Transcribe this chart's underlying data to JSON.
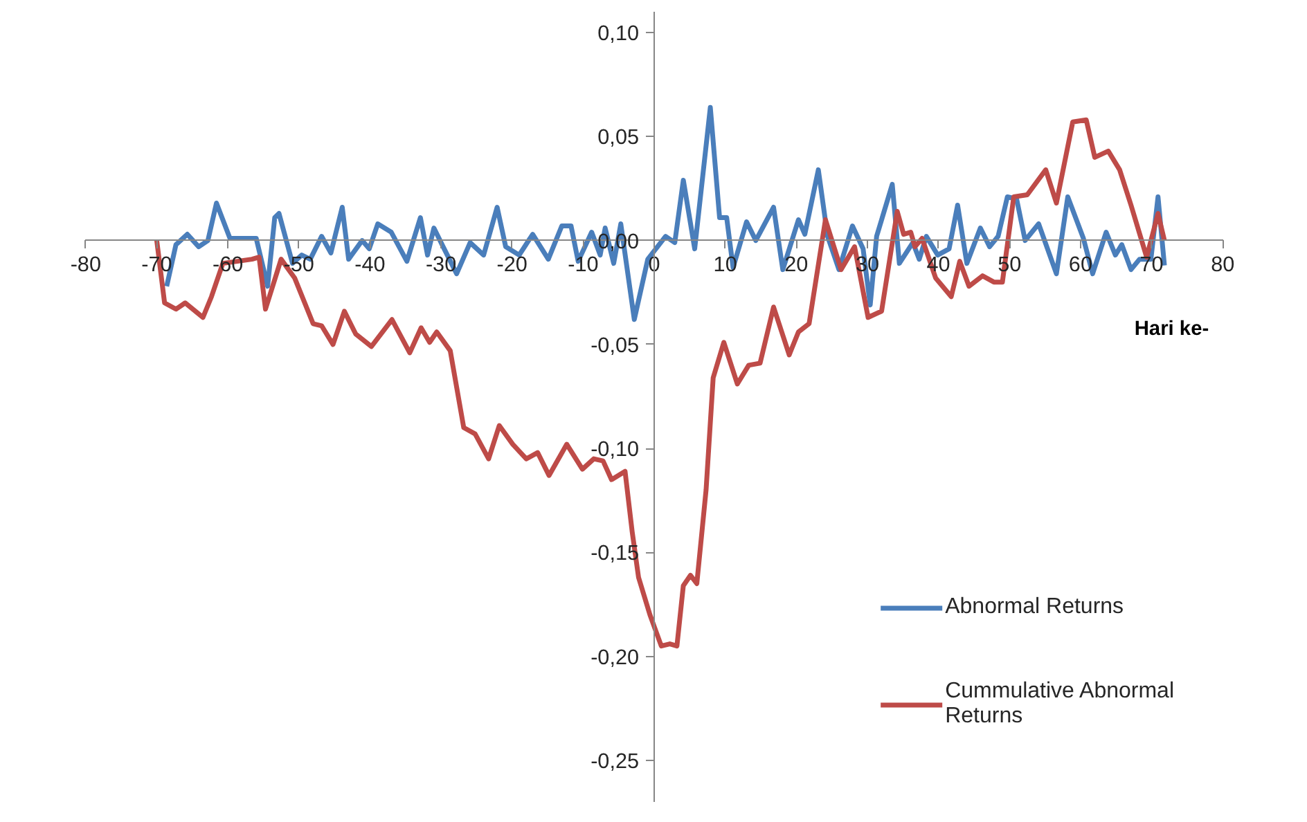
{
  "chart_data": {
    "type": "line",
    "xlabel": "Hari ke-",
    "xlim": [
      -80,
      80
    ],
    "ylim": [
      -0.27,
      0.11
    ],
    "xticks": [
      -80,
      -70,
      -60,
      -50,
      -40,
      -30,
      -20,
      -10,
      0,
      10,
      20,
      30,
      40,
      50,
      60,
      70,
      80
    ],
    "yticks": [
      {
        "value": -0.25,
        "label": "-0,25"
      },
      {
        "value": -0.2,
        "label": "-0,20"
      },
      {
        "value": -0.15,
        "label": "-0,15"
      },
      {
        "value": -0.1,
        "label": "-0,10"
      },
      {
        "value": -0.05,
        "label": "-0,05"
      },
      {
        "value": 0,
        "label": "0,00"
      },
      {
        "value": 0.05,
        "label": "0,05"
      },
      {
        "value": 0.1,
        "label": "0,10"
      }
    ],
    "grid": false,
    "legend": "bottom right",
    "marker": "none",
    "line_style": "solid",
    "series": [
      {
        "name": "Abnormal Returns",
        "color": "#4a7ebb",
        "x": [
          -68.6,
          -67.3,
          -65.7,
          -64.1,
          -62.8,
          -61.6,
          -59.7,
          -56.0,
          -54.4,
          -53.4,
          -52.8,
          -50.9,
          -49.6,
          -48.4,
          -46.8,
          -45.5,
          -43.9,
          -43.0,
          -41.1,
          -40.1,
          -38.9,
          -37.0,
          -34.8,
          -32.9,
          -31.9,
          -31.0,
          -29.7,
          -27.8,
          -25.9,
          -24.0,
          -22.1,
          -20.9,
          -19.0,
          -17.1,
          -14.9,
          -13.0,
          -11.7,
          -10.7,
          -8.8,
          -7.6,
          -6.9,
          -5.7,
          -4.7,
          -2.8,
          -0.9,
          1.6,
          2.9,
          4.1,
          5.7,
          7.9,
          9.2,
          10.2,
          11.1,
          13.0,
          14.3,
          16.8,
          18.1,
          20.3,
          21.2,
          23.1,
          24.4,
          26.0,
          27.9,
          29.4,
          30.4,
          31.3,
          33.5,
          34.5,
          36.4,
          37.3,
          38.3,
          39.9,
          41.5,
          42.7,
          44.0,
          45.9,
          47.2,
          48.4,
          49.7,
          51.0,
          52.2,
          54.1,
          56.6,
          58.2,
          60.4,
          61.7,
          63.6,
          64.9,
          65.8,
          67.1,
          68.3,
          69.9,
          70.9,
          71.8
        ],
        "values": [
          -0.022,
          -0.002,
          0.003,
          -0.003,
          0.0,
          0.018,
          0.001,
          0.001,
          -0.022,
          0.011,
          0.013,
          -0.011,
          -0.007,
          -0.009,
          0.002,
          -0.006,
          0.016,
          -0.009,
          0.0,
          -0.004,
          0.008,
          0.004,
          -0.01,
          0.011,
          -0.007,
          0.006,
          -0.003,
          -0.016,
          -0.001,
          -0.007,
          0.016,
          -0.003,
          -0.007,
          0.003,
          -0.009,
          0.007,
          0.007,
          -0.01,
          0.004,
          -0.007,
          0.006,
          -0.011,
          0.008,
          -0.038,
          -0.009,
          0.002,
          -0.001,
          0.029,
          -0.004,
          0.064,
          0.011,
          0.011,
          -0.013,
          0.009,
          0.0,
          0.016,
          -0.014,
          0.01,
          0.003,
          0.034,
          0.002,
          -0.014,
          0.007,
          -0.004,
          -0.031,
          0.002,
          0.027,
          -0.011,
          -0.001,
          -0.009,
          0.002,
          -0.007,
          -0.004,
          0.017,
          -0.011,
          0.006,
          -0.003,
          0.002,
          0.021,
          0.02,
          0.0,
          0.008,
          -0.016,
          0.021,
          0.001,
          -0.016,
          0.004,
          -0.007,
          -0.002,
          -0.014,
          -0.009,
          -0.009,
          0.021,
          -0.012
        ]
      },
      {
        "name": "Cummulative Abnormal\nReturns",
        "color": "#be4b48",
        "x": [
          -70.0,
          -68.9,
          -67.3,
          -66.0,
          -63.5,
          -62.3,
          -60.7,
          -56.6,
          -55.6,
          -54.7,
          -52.5,
          -50.6,
          -48.0,
          -46.8,
          -45.2,
          -43.6,
          -42.0,
          -39.8,
          -36.9,
          -34.4,
          -32.8,
          -31.6,
          -30.6,
          -28.7,
          -26.8,
          -25.2,
          -23.3,
          -21.8,
          -19.9,
          -18.0,
          -16.4,
          -14.8,
          -12.3,
          -10.1,
          -8.5,
          -7.2,
          -6.0,
          -4.1,
          -3.1,
          -2.2,
          -0.6,
          1.0,
          2.2,
          3.2,
          4.1,
          5.1,
          6.0,
          7.3,
          8.3,
          9.8,
          11.7,
          13.3,
          14.9,
          16.8,
          19.0,
          20.3,
          21.8,
          24.1,
          26.3,
          28.2,
          30.1,
          32.0,
          34.2,
          35.1,
          36.1,
          36.7,
          37.7,
          39.6,
          41.8,
          43.0,
          44.3,
          46.2,
          47.8,
          49.0,
          50.6,
          52.5,
          55.1,
          56.6,
          58.9,
          60.8,
          62.0,
          63.9,
          65.5,
          67.1,
          69.3,
          70.9,
          71.8
        ],
        "values": [
          0.0,
          -0.03,
          -0.033,
          -0.03,
          -0.037,
          -0.027,
          -0.011,
          -0.009,
          -0.008,
          -0.033,
          -0.009,
          -0.018,
          -0.04,
          -0.041,
          -0.05,
          -0.034,
          -0.045,
          -0.051,
          -0.038,
          -0.054,
          -0.042,
          -0.049,
          -0.044,
          -0.053,
          -0.09,
          -0.093,
          -0.105,
          -0.089,
          -0.098,
          -0.105,
          -0.102,
          -0.113,
          -0.098,
          -0.11,
          -0.105,
          -0.106,
          -0.115,
          -0.111,
          -0.14,
          -0.162,
          -0.18,
          -0.195,
          -0.194,
          -0.195,
          -0.166,
          -0.161,
          -0.165,
          -0.12,
          -0.066,
          -0.049,
          -0.069,
          -0.06,
          -0.059,
          -0.032,
          -0.055,
          -0.044,
          -0.04,
          0.01,
          -0.014,
          -0.003,
          -0.037,
          -0.034,
          0.014,
          0.003,
          0.004,
          -0.003,
          0.001,
          -0.018,
          -0.027,
          -0.01,
          -0.022,
          -0.017,
          -0.02,
          -0.02,
          0.021,
          0.022,
          0.034,
          0.018,
          0.057,
          0.058,
          0.04,
          0.043,
          0.034,
          0.017,
          -0.008,
          0.013,
          0.0
        ]
      }
    ]
  }
}
